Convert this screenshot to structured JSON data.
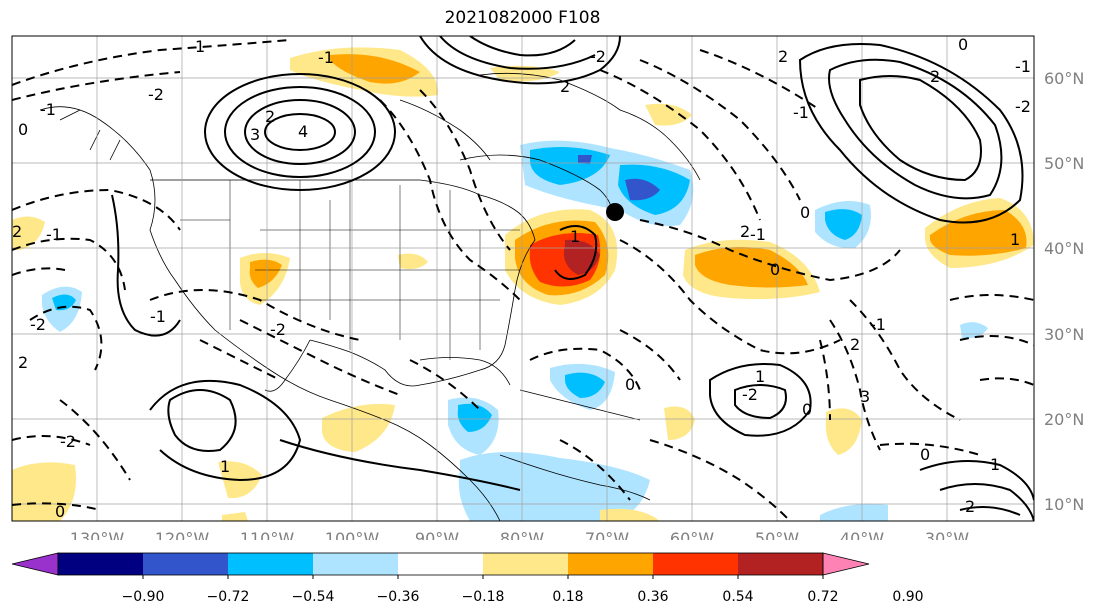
{
  "title": "2021082000 F108",
  "map": {
    "lon_labels": [
      "130°W",
      "120°W",
      "110°W",
      "100°W",
      "90°W",
      "80°W",
      "70°W",
      "60°W",
      "50°W",
      "40°W",
      "30°W"
    ],
    "lat_labels": [
      "60°N",
      "50°N",
      "40°N",
      "30°N",
      "20°N",
      "10°N"
    ],
    "lon_range": [
      -139,
      -18
    ],
    "lat_range": [
      8,
      65
    ],
    "contour_labels": [
      "-1",
      "2",
      "3",
      "4",
      "1",
      "-2",
      "-1",
      "0",
      "2",
      "-2",
      "2",
      "-1",
      "0",
      "-1",
      "-2",
      "2",
      "0",
      "1",
      "0",
      "-1",
      "2",
      "-1",
      "1",
      "0",
      "-2",
      "1",
      "2",
      "-2",
      "3",
      "0",
      "2",
      "2",
      "-1",
      "-2",
      "0",
      "1",
      "2",
      "1",
      "0",
      "-1",
      "-2"
    ],
    "marker": {
      "lon": -69.5,
      "lat": 44.5
    }
  },
  "colorbar": {
    "ticks": [
      "−0.90",
      "−0.72",
      "−0.54",
      "−0.36",
      "−0.18",
      "0.18",
      "0.36",
      "0.54",
      "0.72",
      "0.90"
    ],
    "colors": [
      "#9932cc",
      "#000080",
      "#3355cc",
      "#00bfff",
      "#aee4ff",
      "#ffffff",
      "#ffe88a",
      "#ffa500",
      "#ff3300",
      "#b22222",
      "#ff82b4"
    ]
  }
}
